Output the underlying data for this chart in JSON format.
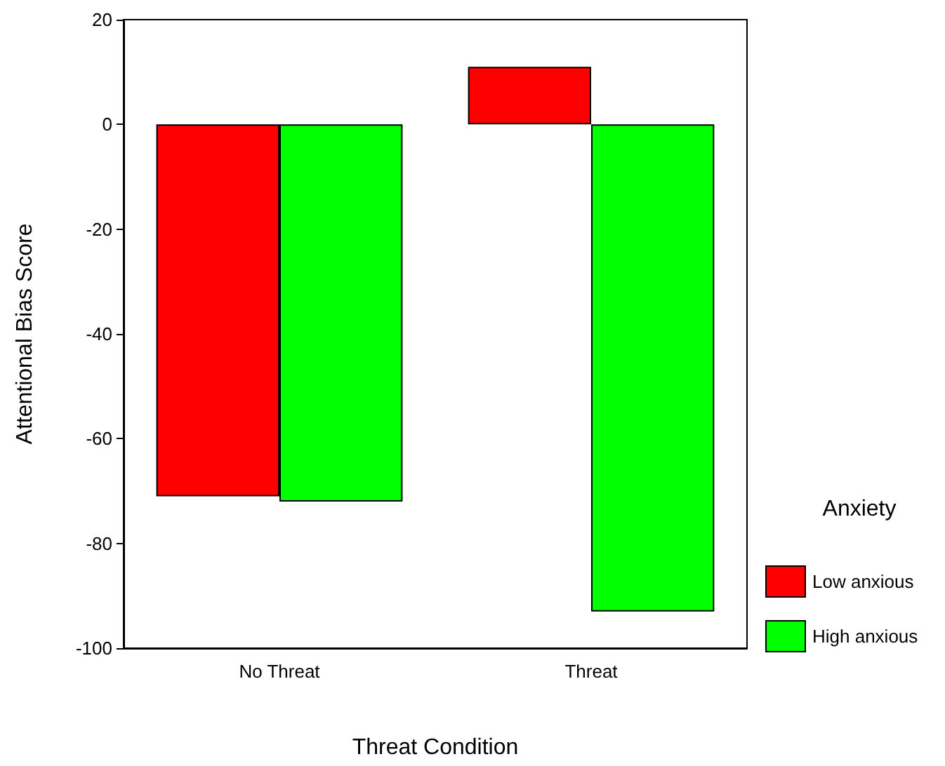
{
  "chart_data": {
    "type": "bar",
    "xlabel": "Threat Condition",
    "ylabel": "Attentional Bias Score",
    "legend_title": "Anxiety",
    "categories": [
      "No Threat",
      "Threat"
    ],
    "series": [
      {
        "name": "Low anxious",
        "color": "#ff0000",
        "values": [
          -71,
          11
        ]
      },
      {
        "name": "High anxious",
        "color": "#00ff00",
        "values": [
          -72,
          -93
        ]
      }
    ],
    "ylim": [
      -100,
      20
    ],
    "yticks": [
      -100,
      -80,
      -60,
      -40,
      -20,
      0,
      20
    ],
    "grid": false,
    "legend": "right"
  }
}
